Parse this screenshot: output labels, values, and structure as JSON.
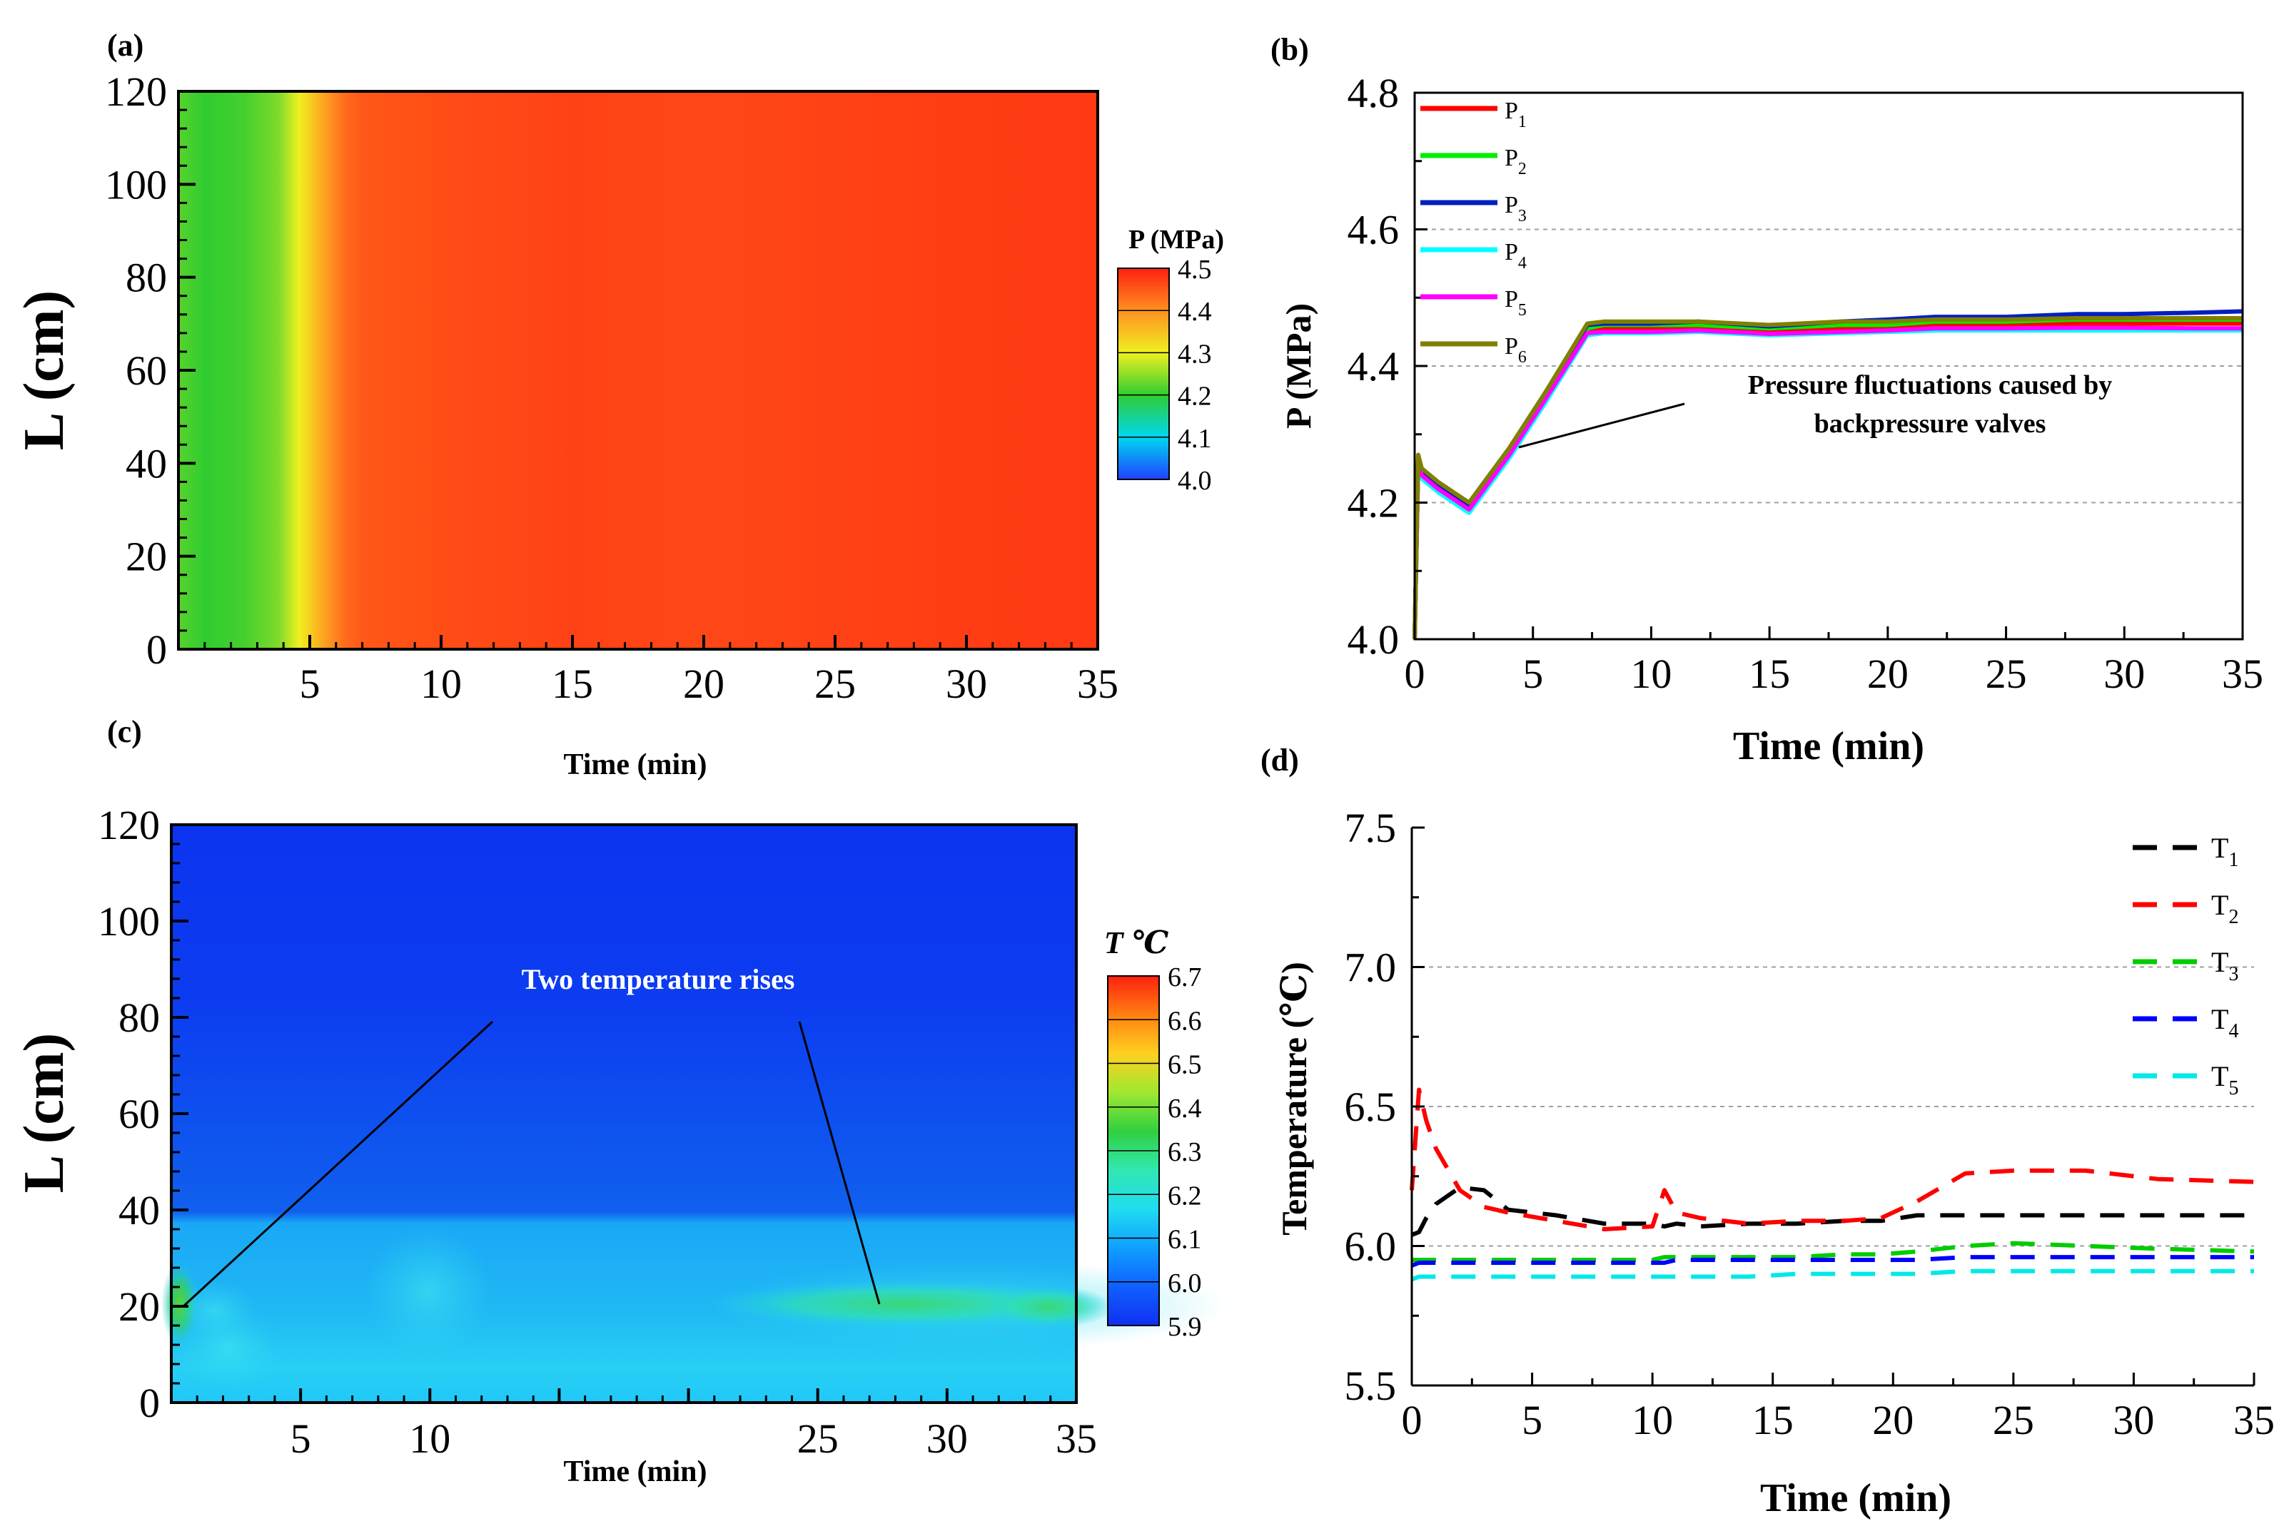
{
  "panels": {
    "a": {
      "label": "(a)"
    },
    "b": {
      "label": "(b)"
    },
    "c": {
      "label": "(c)"
    },
    "d": {
      "label": "(d)"
    }
  },
  "chart_data": [
    {
      "id": "a",
      "type": "heatmap",
      "xlabel": "Time (min)",
      "ylabel": "L (cm)",
      "xlim": [
        0,
        35
      ],
      "ylim": [
        0,
        120
      ],
      "x_ticks": [
        "5",
        "10",
        "15",
        "20",
        "25",
        "30",
        "35"
      ],
      "y_ticks": [
        "0",
        "20",
        "40",
        "60",
        "80",
        "100",
        "120"
      ],
      "colorbar": {
        "title": "P (MPa)",
        "min": 4.0,
        "max": 4.5,
        "ticks": [
          "4.0",
          "4.1",
          "4.2",
          "4.3",
          "4.4",
          "4.5"
        ],
        "colors": [
          "#2040ff",
          "#00d8f0",
          "#30cc30",
          "#f0f020",
          "#ff9020",
          "#ff2010"
        ]
      },
      "time_profile": {
        "time_min": [
          0,
          1,
          2.5,
          3.8,
          4.6,
          5.3,
          5.8,
          6.3,
          7,
          10,
          15,
          20,
          25,
          30,
          35
        ],
        "pressure_mpa": [
          4.22,
          4.2,
          4.21,
          4.24,
          4.3,
          4.36,
          4.4,
          4.43,
          4.45,
          4.46,
          4.47,
          4.465,
          4.47,
          4.475,
          4.478
        ]
      }
    },
    {
      "id": "b",
      "type": "line",
      "xlabel": "Time (min)",
      "ylabel": "P (MPa)",
      "xlim": [
        0,
        35
      ],
      "ylim": [
        4.0,
        4.8
      ],
      "x_ticks": [
        "0",
        "5",
        "10",
        "15",
        "20",
        "25",
        "30",
        "35"
      ],
      "y_ticks": [
        "4.0",
        "4.2",
        "4.4",
        "4.6",
        "4.8"
      ],
      "grid": "horizontal dashed",
      "legend": "top-left",
      "annotation": {
        "line1": "Pressure fluctuations caused by",
        "line2": "backpressure valves"
      },
      "x": [
        0,
        0.15,
        0.3,
        1,
        2.3,
        4,
        5.5,
        7.3,
        8,
        10,
        12,
        15,
        18,
        20,
        22,
        25,
        28,
        30,
        33,
        35
      ],
      "series": [
        {
          "name": "P",
          "sub": "1",
          "color": "#ff0000",
          "values": [
            4.0,
            4.26,
            4.24,
            4.22,
            4.19,
            4.27,
            4.35,
            4.45,
            4.455,
            4.455,
            4.456,
            4.45,
            4.455,
            4.455,
            4.46,
            4.46,
            4.462,
            4.462,
            4.462,
            4.462
          ]
        },
        {
          "name": "P",
          "sub": "2",
          "color": "#00ee00",
          "values": [
            4.0,
            4.265,
            4.245,
            4.225,
            4.195,
            4.275,
            4.355,
            4.455,
            4.46,
            4.46,
            4.46,
            4.455,
            4.46,
            4.46,
            4.465,
            4.465,
            4.468,
            4.468,
            4.468,
            4.468
          ]
        },
        {
          "name": "P",
          "sub": "3",
          "color": "#0020c0",
          "values": [
            4.0,
            4.265,
            4.245,
            4.225,
            4.195,
            4.275,
            4.355,
            4.46,
            4.462,
            4.462,
            4.465,
            4.458,
            4.465,
            4.468,
            4.472,
            4.472,
            4.476,
            4.476,
            4.478,
            4.48
          ]
        },
        {
          "name": "P",
          "sub": "4",
          "color": "#00ffff",
          "values": [
            4.0,
            4.255,
            4.235,
            4.215,
            4.185,
            4.265,
            4.345,
            4.445,
            4.448,
            4.448,
            4.45,
            4.445,
            4.448,
            4.45,
            4.452,
            4.452,
            4.452,
            4.452,
            4.452,
            4.452
          ]
        },
        {
          "name": "P",
          "sub": "5",
          "color": "#ff00ff",
          "values": [
            4.0,
            4.26,
            4.24,
            4.22,
            4.19,
            4.27,
            4.35,
            4.448,
            4.45,
            4.45,
            4.452,
            4.447,
            4.45,
            4.452,
            4.455,
            4.455,
            4.456,
            4.456,
            4.455,
            4.455
          ]
        },
        {
          "name": "P",
          "sub": "6",
          "color": "#808000",
          "values": [
            4.0,
            4.27,
            4.25,
            4.23,
            4.2,
            4.28,
            4.36,
            4.462,
            4.465,
            4.465,
            4.465,
            4.46,
            4.465,
            4.465,
            4.468,
            4.468,
            4.47,
            4.47,
            4.47,
            4.47
          ]
        }
      ]
    },
    {
      "id": "c",
      "type": "heatmap",
      "xlabel": "Time (min)",
      "ylabel": "L (cm)",
      "xlim": [
        0,
        35
      ],
      "ylim": [
        0,
        120
      ],
      "x_ticks": [
        "5",
        "10",
        "25",
        "30",
        "35"
      ],
      "y_ticks": [
        "0",
        "20",
        "40",
        "60",
        "80",
        "100",
        "120"
      ],
      "colorbar": {
        "title": "T ℃",
        "min": 5.9,
        "max": 6.7,
        "ticks": [
          "5.9",
          "6.0",
          "6.1",
          "6.2",
          "6.3",
          "6.4",
          "6.5",
          "6.6",
          "6.7"
        ],
        "colors": [
          "#1030f0",
          "#1060ff",
          "#10a0ff",
          "#20dcf0",
          "#30e8b0",
          "#30d040",
          "#a0e830",
          "#ffd020",
          "#ff8010",
          "#ff2010"
        ]
      },
      "annotation": "Two temperature rises"
    },
    {
      "id": "d",
      "type": "line",
      "xlabel": "Time (min)",
      "ylabel": "Temperature (℃)",
      "xlim": [
        0,
        35
      ],
      "ylim": [
        5.5,
        7.5
      ],
      "x_ticks": [
        "0",
        "5",
        "10",
        "15",
        "20",
        "25",
        "30",
        "35"
      ],
      "y_ticks": [
        "5.5",
        "6.0",
        "6.5",
        "7.0",
        "7.5"
      ],
      "grid": "horizontal dashed",
      "legend": "top-right",
      "x": [
        0,
        0.3,
        0.6,
        1,
        2,
        3,
        4,
        6,
        8,
        10,
        10.5,
        11,
        12,
        14,
        16,
        18,
        19.5,
        21,
        23,
        25,
        28,
        31,
        35
      ],
      "series": [
        {
          "name": "T",
          "sub": "1",
          "color": "#000000",
          "values": [
            6.04,
            6.05,
            6.1,
            6.15,
            6.21,
            6.2,
            6.13,
            6.11,
            6.08,
            6.08,
            6.07,
            6.08,
            6.07,
            6.08,
            6.08,
            6.09,
            6.09,
            6.11,
            6.11,
            6.11,
            6.11,
            6.11,
            6.11
          ]
        },
        {
          "name": "T",
          "sub": "2",
          "color": "#ff0000",
          "values": [
            6.2,
            6.56,
            6.45,
            6.35,
            6.2,
            6.14,
            6.12,
            6.09,
            6.06,
            6.07,
            6.2,
            6.12,
            6.1,
            6.08,
            6.09,
            6.09,
            6.1,
            6.16,
            6.26,
            6.27,
            6.27,
            6.24,
            6.23
          ]
        },
        {
          "name": "T",
          "sub": "3",
          "color": "#00cc00",
          "values": [
            5.95,
            5.95,
            5.95,
            5.95,
            5.95,
            5.95,
            5.95,
            5.95,
            5.95,
            5.95,
            5.96,
            5.96,
            5.96,
            5.96,
            5.96,
            5.97,
            5.97,
            5.98,
            6.0,
            6.01,
            6.0,
            5.99,
            5.98
          ]
        },
        {
          "name": "T",
          "sub": "4",
          "color": "#0000ff",
          "values": [
            5.93,
            5.94,
            5.94,
            5.94,
            5.94,
            5.94,
            5.94,
            5.94,
            5.94,
            5.94,
            5.94,
            5.95,
            5.95,
            5.95,
            5.95,
            5.95,
            5.95,
            5.95,
            5.96,
            5.96,
            5.96,
            5.96,
            5.96
          ]
        },
        {
          "name": "T",
          "sub": "5",
          "color": "#00e8e8",
          "values": [
            5.88,
            5.89,
            5.89,
            5.89,
            5.89,
            5.89,
            5.89,
            5.89,
            5.89,
            5.89,
            5.89,
            5.89,
            5.89,
            5.89,
            5.9,
            5.9,
            5.9,
            5.9,
            5.91,
            5.91,
            5.91,
            5.91,
            5.91
          ]
        }
      ]
    }
  ]
}
